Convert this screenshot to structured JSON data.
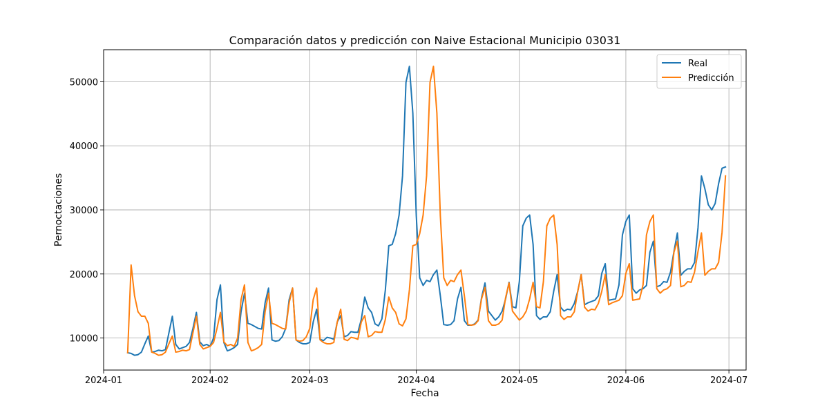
{
  "chart_data": {
    "type": "line",
    "title": "Comparación datos y predicción con Naive Estacional Municipio 03031",
    "xlabel": "Fecha",
    "ylabel": "Pernoctaciones",
    "x_start": "2024-01-08",
    "x_end": "2024-06-30",
    "xlim": [
      "2024-01-01",
      "2024-07-06"
    ],
    "ylim": [
      5000,
      55000
    ],
    "x_ticks": [
      {
        "date": "2024-01-01",
        "label": "2024-01"
      },
      {
        "date": "2024-02-01",
        "label": "2024-02"
      },
      {
        "date": "2024-03-01",
        "label": "2024-03"
      },
      {
        "date": "2024-04-01",
        "label": "2024-04"
      },
      {
        "date": "2024-05-01",
        "label": "2024-05"
      },
      {
        "date": "2024-06-01",
        "label": "2024-06"
      },
      {
        "date": "2024-07-01",
        "label": "2024-07"
      }
    ],
    "y_ticks": [
      {
        "value": 10000,
        "label": "10000"
      },
      {
        "value": 20000,
        "label": "20000"
      },
      {
        "value": 30000,
        "label": "30000"
      },
      {
        "value": 40000,
        "label": "40000"
      },
      {
        "value": 50000,
        "label": "50000"
      }
    ],
    "grid": true,
    "legend_position": "top-right",
    "series": [
      {
        "name": "Real",
        "color": "#1f77b4",
        "values": [
          7700,
          7600,
          7300,
          7400,
          7800,
          9100,
          10300,
          7800,
          7900,
          8100,
          8000,
          8200,
          10800,
          13400,
          9000,
          8300,
          8500,
          8700,
          9300,
          11500,
          14000,
          9400,
          8800,
          9000,
          8700,
          10000,
          16000,
          18300,
          9300,
          8000,
          8200,
          8500,
          9000,
          14100,
          17000,
          12300,
          12100,
          11800,
          11500,
          11400,
          15500,
          17800,
          9700,
          9500,
          9600,
          10200,
          11500,
          16000,
          17800,
          9700,
          9300,
          9100,
          9100,
          9300,
          12500,
          14500,
          9800,
          9600,
          10100,
          10000,
          9800,
          12500,
          13500,
          10200,
          10400,
          11000,
          10900,
          10900,
          12900,
          16400,
          14700,
          14000,
          12200,
          11900,
          13000,
          17500,
          24400,
          24600,
          26300,
          29200,
          35300,
          49900,
          52400,
          45100,
          29100,
          19400,
          18200,
          19000,
          18800,
          19900,
          20600,
          16600,
          12100,
          12000,
          12100,
          12700,
          16100,
          17900,
          12700,
          12000,
          12000,
          12200,
          12800,
          16300,
          18600,
          14200,
          13500,
          12800,
          13300,
          14200,
          16100,
          18700,
          14900,
          14700,
          18800,
          27500,
          28700,
          29200,
          24600,
          13500,
          12900,
          13300,
          13300,
          14100,
          17300,
          19900,
          14800,
          14200,
          14500,
          14400,
          15400,
          17300,
          19900,
          15200,
          15500,
          15700,
          15900,
          16600,
          20100,
          21600,
          15900,
          16000,
          16100,
          18300,
          26100,
          28200,
          29200,
          17700,
          17000,
          17500,
          17700,
          18200,
          23400,
          25100,
          18000,
          18200,
          18800,
          18700,
          20300,
          23500,
          26400,
          19800,
          20400,
          20800,
          20800,
          21800,
          27200,
          35300,
          33300,
          30800,
          30000,
          31000,
          34100,
          36500,
          36700
        ]
      },
      {
        "name": "Predicción",
        "color": "#ff7f0e",
        "values": [
          7700,
          21400,
          16600,
          14100,
          13400,
          13400,
          12300,
          7800,
          7600,
          7300,
          7400,
          7800,
          9100,
          10300,
          7800,
          7900,
          8100,
          8000,
          8200,
          10800,
          13400,
          9000,
          8300,
          8500,
          8700,
          9300,
          11500,
          14000,
          9400,
          8800,
          9000,
          8700,
          10000,
          16000,
          18300,
          9300,
          8000,
          8200,
          8500,
          9000,
          14100,
          17000,
          12300,
          12100,
          11800,
          11500,
          11400,
          15500,
          17800,
          9700,
          9500,
          9600,
          10200,
          11500,
          16000,
          17800,
          9700,
          9300,
          9100,
          9100,
          9300,
          12500,
          14500,
          9800,
          9600,
          10100,
          10000,
          9800,
          12500,
          13500,
          10200,
          10400,
          11000,
          10900,
          10900,
          12900,
          16400,
          14700,
          14000,
          12200,
          11900,
          13000,
          17500,
          24400,
          24600,
          26300,
          29200,
          35300,
          49900,
          52400,
          45100,
          29100,
          19400,
          18200,
          19000,
          18800,
          19900,
          20600,
          16600,
          12100,
          12000,
          12100,
          12700,
          16100,
          17900,
          12700,
          12000,
          12000,
          12200,
          12800,
          16300,
          18600,
          14200,
          13500,
          12800,
          13300,
          14200,
          16100,
          18700,
          14900,
          14700,
          18800,
          27500,
          28700,
          29200,
          24600,
          13500,
          12900,
          13300,
          13300,
          14100,
          17300,
          19900,
          14800,
          14200,
          14500,
          14400,
          15400,
          17300,
          19900,
          15200,
          15500,
          15700,
          15900,
          16600,
          20100,
          21600,
          15900,
          16000,
          16100,
          18300,
          26100,
          28200,
          29200,
          17700,
          17000,
          17500,
          17700,
          18200,
          23400,
          25100,
          18000,
          18200,
          18800,
          18700,
          20300,
          23500,
          26400,
          19800,
          20400,
          20800,
          20800,
          21800,
          26500,
          35300
        ]
      }
    ]
  }
}
